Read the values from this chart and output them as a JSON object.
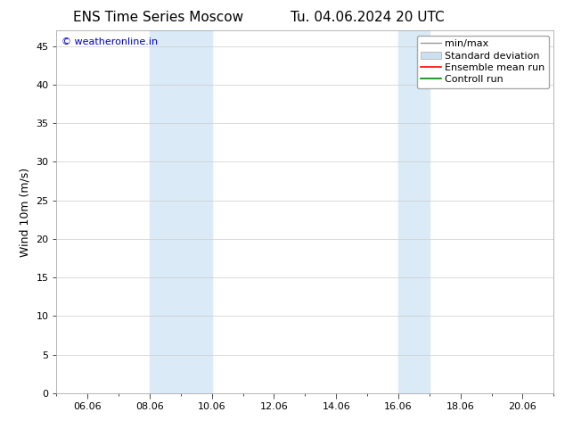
{
  "title": "ENS Time Series Moscow",
  "title2": "Tu. 04.06.2024 20 UTC",
  "ylabel": "Wind 10m (m/s)",
  "background_color": "#ffffff",
  "plot_bg_color": "#ffffff",
  "ylim": [
    0,
    47
  ],
  "yticks": [
    0,
    5,
    10,
    15,
    20,
    25,
    30,
    35,
    40,
    45
  ],
  "xtick_labels": [
    "06.06",
    "08.06",
    "10.06",
    "12.06",
    "14.06",
    "16.06",
    "18.06",
    "20.06"
  ],
  "xtick_values": [
    6,
    8,
    10,
    12,
    14,
    16,
    18,
    20
  ],
  "xmin": 5,
  "xmax": 21,
  "shaded_bands": [
    {
      "x_start": 8.0,
      "x_end": 10.0,
      "color": "#daeaf7"
    },
    {
      "x_start": 16.0,
      "x_end": 17.0,
      "color": "#daeaf7"
    }
  ],
  "watermark_text": "© weatheronline.in",
  "watermark_color": "#0000cc",
  "legend_entries": [
    {
      "label": "min/max",
      "color": "#aaaaaa"
    },
    {
      "label": "Standard deviation",
      "color": "#cce0f0"
    },
    {
      "label": "Ensemble mean run",
      "color": "#ff0000"
    },
    {
      "label": "Controll run",
      "color": "#008800"
    }
  ],
  "title_fontsize": 11,
  "axis_label_fontsize": 9,
  "tick_fontsize": 8,
  "watermark_fontsize": 8,
  "legend_fontsize": 8
}
